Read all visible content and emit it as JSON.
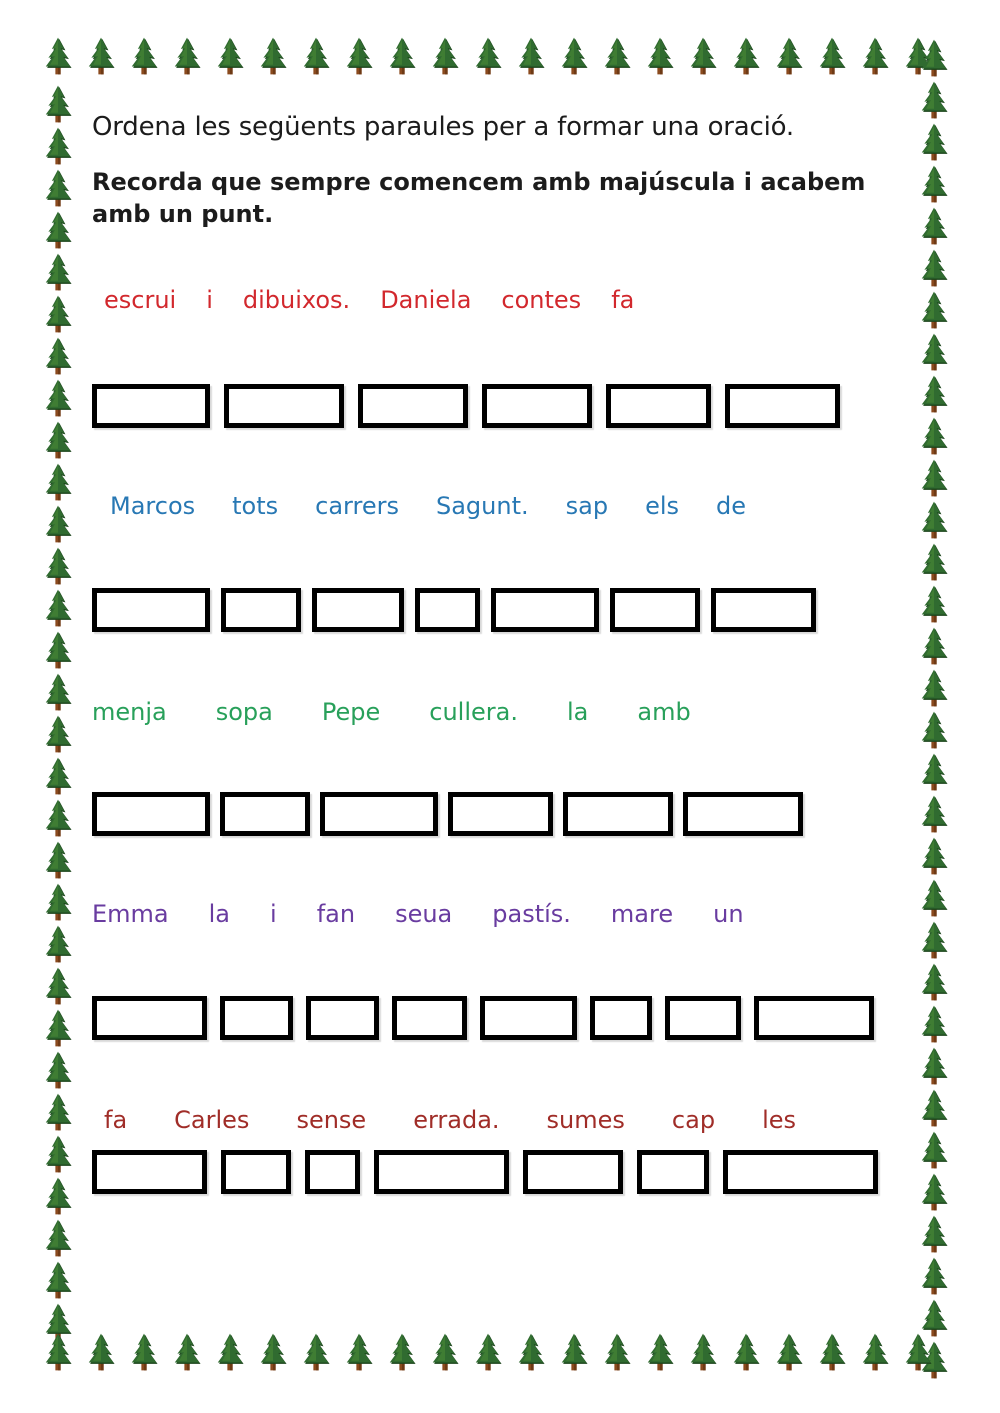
{
  "worksheet": {
    "title": "Ordena les següents paraules per a formar una oració.",
    "reminder_lines": [
      "Recorda que sempre comencem amb majúscula i acabem",
      "amb un punt."
    ]
  },
  "border": {
    "icon": "pine-tree-icon"
  },
  "colors": {
    "title_text": "#1c1c1c",
    "exercise_1_red": "#d2282d",
    "exercise_2_blue": "#2878b4",
    "exercise_3_green": "#28a05a",
    "exercise_4_purple": "#693ca0",
    "exercise_5_dark_red": "#a02d28",
    "answer_box_border": "#000000",
    "tree_green": "#306b30",
    "tree_green_dark": "#1c451c",
    "tree_trunk_brown": "#8a4a1e"
  },
  "exercises": [
    {
      "color": "#d2282d",
      "answer_box_count": 6,
      "words": [
        "escrui",
        "i",
        "dibuixos.",
        "Daniela",
        "contes",
        "fa"
      ]
    },
    {
      "color": "#2878b4",
      "answer_box_count": 7,
      "words": [
        "Marcos",
        "tots",
        "carrers",
        "Sagunt.",
        "sap",
        "els",
        "de"
      ]
    },
    {
      "color": "#28a05a",
      "answer_box_count": 6,
      "words": [
        "menja",
        "sopa",
        "Pepe",
        "cullera.",
        "la",
        "amb"
      ]
    },
    {
      "color": "#693ca0",
      "answer_box_count": 8,
      "words": [
        "Emma",
        "la",
        "i",
        "fan",
        "seua",
        "pastís.",
        "mare",
        "un"
      ]
    },
    {
      "color": "#a02d28",
      "answer_box_count": 7,
      "words": [
        "fa",
        "Carles",
        "sense",
        "errada.",
        "sumes",
        "cap",
        "les"
      ]
    }
  ]
}
